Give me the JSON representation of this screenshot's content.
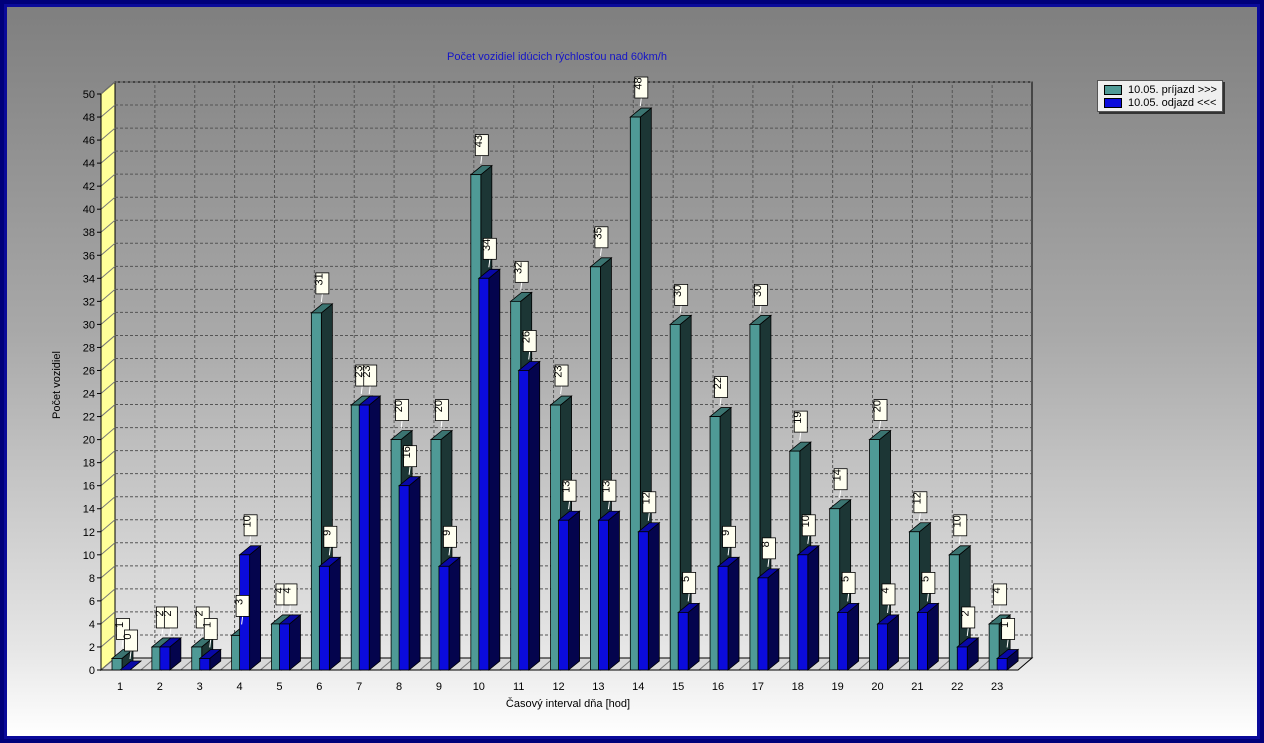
{
  "chart_data": {
    "type": "bar",
    "title": "Počet vozidiel idúcich rýchlosťou nad 60km/h",
    "xlabel": "Časový interval dňa [hod]",
    "ylabel": "Počet vozidiel",
    "ylim": [
      0,
      50
    ],
    "ytick_step": 2,
    "grid": true,
    "legend_position": "top-right",
    "categories": [
      "1",
      "2",
      "3",
      "4",
      "5",
      "6",
      "7",
      "8",
      "9",
      "10",
      "11",
      "12",
      "13",
      "14",
      "15",
      "16",
      "17",
      "18",
      "19",
      "20",
      "21",
      "22",
      "23"
    ],
    "series": [
      {
        "name": "10.05.  príjazd >>>",
        "color": "#4f9a96",
        "values": [
          1,
          2,
          2,
          3,
          4,
          31,
          23,
          20,
          20,
          43,
          32,
          23,
          35,
          48,
          30,
          22,
          30,
          19,
          14,
          20,
          12,
          10,
          4
        ]
      },
      {
        "name": "10.05.  odjazd <<<",
        "color": "#0b0bdc",
        "values": [
          0,
          2,
          1,
          10,
          4,
          9,
          23,
          16,
          9,
          34,
          26,
          13,
          13,
          12,
          5,
          9,
          8,
          10,
          5,
          4,
          5,
          2,
          1
        ]
      }
    ]
  },
  "colors": {
    "plot_side_wall": "#ffff99",
    "label_box": "#fffff0",
    "frame_border": "#0a0a9a",
    "title_color": "#1414c8"
  }
}
